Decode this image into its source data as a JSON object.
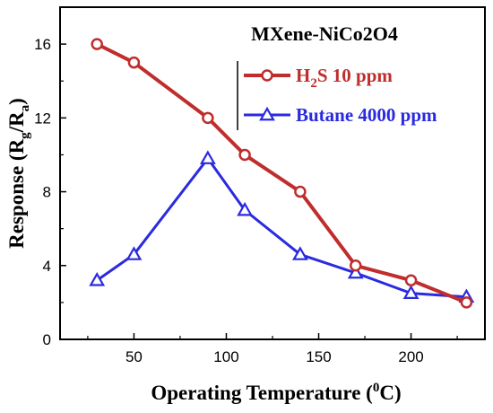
{
  "chart_data": {
    "type": "line",
    "annotation": "MXene-NiCo2O4",
    "xlabel": "Operating Temperature (0C)",
    "xlabel_main": "Operating Temperature (",
    "xlabel_sup": "0",
    "xlabel_tail": "C)",
    "ylabel": "Response (Rg/Ra)",
    "ylabel_main": "Response (R",
    "ylabel_sub1": "g",
    "ylabel_mid": "/R",
    "ylabel_sub2": "a",
    "ylabel_tail": ")",
    "xlim": [
      10,
      240
    ],
    "ylim": [
      0,
      18
    ],
    "xticks": [
      50,
      100,
      150,
      200
    ],
    "yticks": [
      0,
      4,
      8,
      12,
      16
    ],
    "grid": false,
    "legend_position": "top-right",
    "series": [
      {
        "name": "H2S 10 ppm",
        "label_main": "H",
        "label_sub": "2",
        "label_tail": "S 10 ppm",
        "color": "#bf2d2d",
        "marker": "circle",
        "x": [
          30,
          50,
          90,
          110,
          140,
          170,
          200,
          230
        ],
        "y": [
          16,
          15,
          12,
          10,
          8,
          4,
          3.2,
          2
        ]
      },
      {
        "name": "Butane 4000 ppm",
        "label_main": "Butane 4000 ppm",
        "color": "#2a2ae0",
        "marker": "triangle",
        "x": [
          30,
          50,
          90,
          110,
          140,
          170,
          200,
          230
        ],
        "y": [
          3.2,
          4.6,
          9.8,
          7,
          4.6,
          3.6,
          2.5,
          2.3
        ]
      }
    ]
  }
}
